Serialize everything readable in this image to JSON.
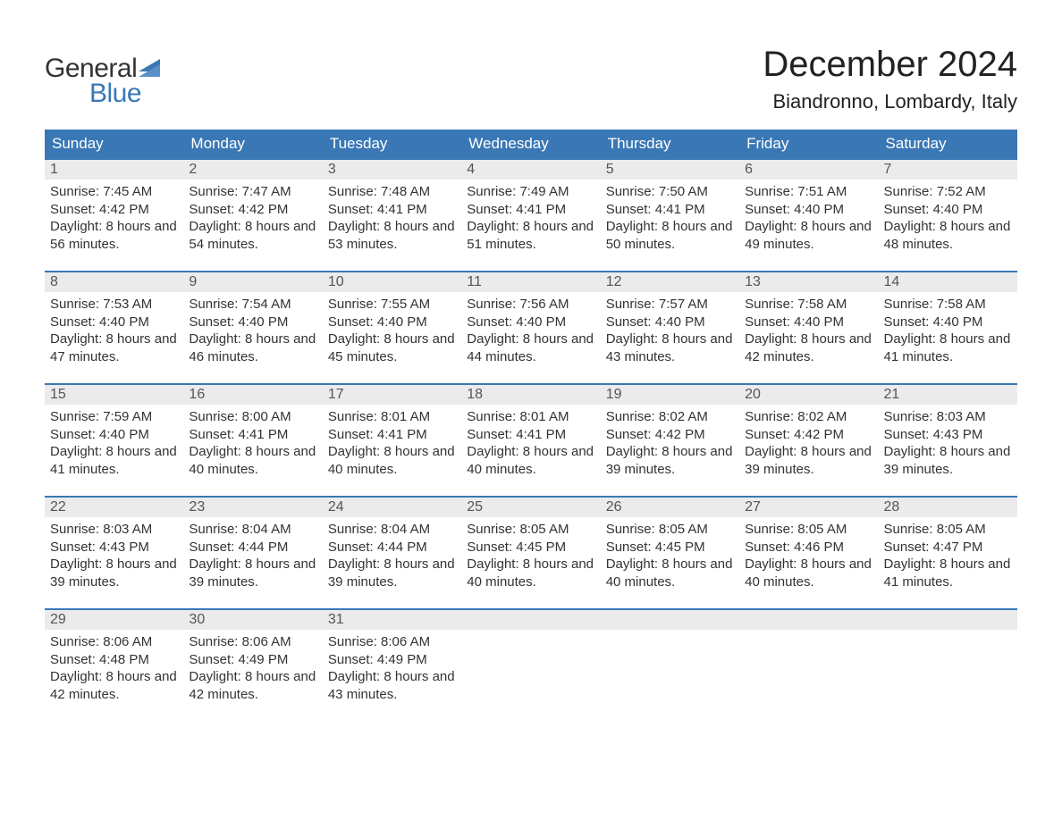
{
  "brand": {
    "word1": "General",
    "word2": "Blue",
    "flag_color": "#3a78b5"
  },
  "title": "December 2024",
  "location": "Biandronno, Lombardy, Italy",
  "colors": {
    "header_bg": "#3a78b5",
    "header_text": "#ffffff",
    "daybar_bg": "#ebebeb",
    "row_border": "#3a78b5",
    "body_text": "#333333",
    "page_bg": "#ffffff"
  },
  "typography": {
    "title_fontsize": 40,
    "location_fontsize": 22,
    "header_fontsize": 17,
    "body_fontsize": 15
  },
  "layout": {
    "columns": 7,
    "rows": 5,
    "first_day_column": 0
  },
  "day_headers": [
    "Sunday",
    "Monday",
    "Tuesday",
    "Wednesday",
    "Thursday",
    "Friday",
    "Saturday"
  ],
  "days": [
    {
      "n": 1,
      "sunrise": "7:45 AM",
      "sunset": "4:42 PM",
      "daylight": "8 hours and 56 minutes."
    },
    {
      "n": 2,
      "sunrise": "7:47 AM",
      "sunset": "4:42 PM",
      "daylight": "8 hours and 54 minutes."
    },
    {
      "n": 3,
      "sunrise": "7:48 AM",
      "sunset": "4:41 PM",
      "daylight": "8 hours and 53 minutes."
    },
    {
      "n": 4,
      "sunrise": "7:49 AM",
      "sunset": "4:41 PM",
      "daylight": "8 hours and 51 minutes."
    },
    {
      "n": 5,
      "sunrise": "7:50 AM",
      "sunset": "4:41 PM",
      "daylight": "8 hours and 50 minutes."
    },
    {
      "n": 6,
      "sunrise": "7:51 AM",
      "sunset": "4:40 PM",
      "daylight": "8 hours and 49 minutes."
    },
    {
      "n": 7,
      "sunrise": "7:52 AM",
      "sunset": "4:40 PM",
      "daylight": "8 hours and 48 minutes."
    },
    {
      "n": 8,
      "sunrise": "7:53 AM",
      "sunset": "4:40 PM",
      "daylight": "8 hours and 47 minutes."
    },
    {
      "n": 9,
      "sunrise": "7:54 AM",
      "sunset": "4:40 PM",
      "daylight": "8 hours and 46 minutes."
    },
    {
      "n": 10,
      "sunrise": "7:55 AM",
      "sunset": "4:40 PM",
      "daylight": "8 hours and 45 minutes."
    },
    {
      "n": 11,
      "sunrise": "7:56 AM",
      "sunset": "4:40 PM",
      "daylight": "8 hours and 44 minutes."
    },
    {
      "n": 12,
      "sunrise": "7:57 AM",
      "sunset": "4:40 PM",
      "daylight": "8 hours and 43 minutes."
    },
    {
      "n": 13,
      "sunrise": "7:58 AM",
      "sunset": "4:40 PM",
      "daylight": "8 hours and 42 minutes."
    },
    {
      "n": 14,
      "sunrise": "7:58 AM",
      "sunset": "4:40 PM",
      "daylight": "8 hours and 41 minutes."
    },
    {
      "n": 15,
      "sunrise": "7:59 AM",
      "sunset": "4:40 PM",
      "daylight": "8 hours and 41 minutes."
    },
    {
      "n": 16,
      "sunrise": "8:00 AM",
      "sunset": "4:41 PM",
      "daylight": "8 hours and 40 minutes."
    },
    {
      "n": 17,
      "sunrise": "8:01 AM",
      "sunset": "4:41 PM",
      "daylight": "8 hours and 40 minutes."
    },
    {
      "n": 18,
      "sunrise": "8:01 AM",
      "sunset": "4:41 PM",
      "daylight": "8 hours and 40 minutes."
    },
    {
      "n": 19,
      "sunrise": "8:02 AM",
      "sunset": "4:42 PM",
      "daylight": "8 hours and 39 minutes."
    },
    {
      "n": 20,
      "sunrise": "8:02 AM",
      "sunset": "4:42 PM",
      "daylight": "8 hours and 39 minutes."
    },
    {
      "n": 21,
      "sunrise": "8:03 AM",
      "sunset": "4:43 PM",
      "daylight": "8 hours and 39 minutes."
    },
    {
      "n": 22,
      "sunrise": "8:03 AM",
      "sunset": "4:43 PM",
      "daylight": "8 hours and 39 minutes."
    },
    {
      "n": 23,
      "sunrise": "8:04 AM",
      "sunset": "4:44 PM",
      "daylight": "8 hours and 39 minutes."
    },
    {
      "n": 24,
      "sunrise": "8:04 AM",
      "sunset": "4:44 PM",
      "daylight": "8 hours and 39 minutes."
    },
    {
      "n": 25,
      "sunrise": "8:05 AM",
      "sunset": "4:45 PM",
      "daylight": "8 hours and 40 minutes."
    },
    {
      "n": 26,
      "sunrise": "8:05 AM",
      "sunset": "4:45 PM",
      "daylight": "8 hours and 40 minutes."
    },
    {
      "n": 27,
      "sunrise": "8:05 AM",
      "sunset": "4:46 PM",
      "daylight": "8 hours and 40 minutes."
    },
    {
      "n": 28,
      "sunrise": "8:05 AM",
      "sunset": "4:47 PM",
      "daylight": "8 hours and 41 minutes."
    },
    {
      "n": 29,
      "sunrise": "8:06 AM",
      "sunset": "4:48 PM",
      "daylight": "8 hours and 42 minutes."
    },
    {
      "n": 30,
      "sunrise": "8:06 AM",
      "sunset": "4:49 PM",
      "daylight": "8 hours and 42 minutes."
    },
    {
      "n": 31,
      "sunrise": "8:06 AM",
      "sunset": "4:49 PM",
      "daylight": "8 hours and 43 minutes."
    }
  ],
  "labels": {
    "sunrise": "Sunrise: ",
    "sunset": "Sunset: ",
    "daylight": "Daylight: "
  }
}
